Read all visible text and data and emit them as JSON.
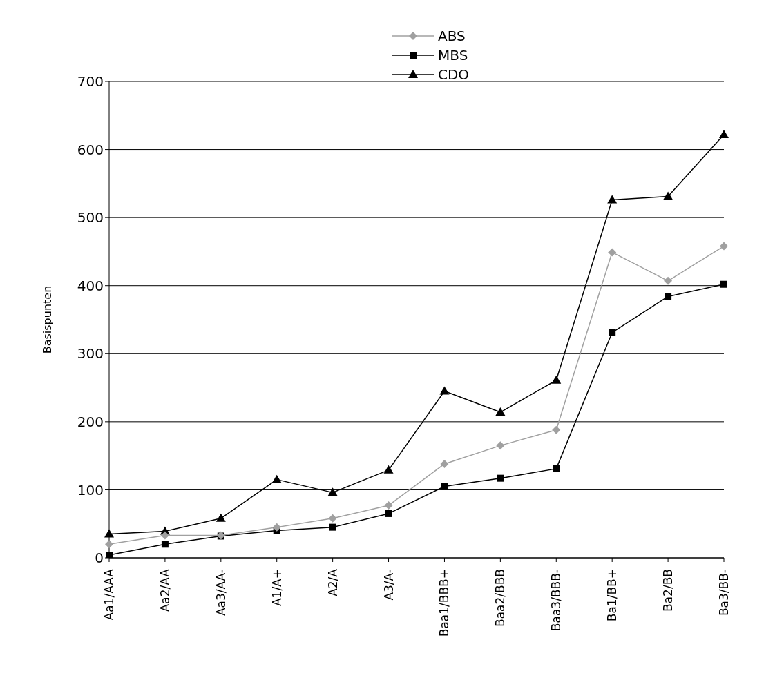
{
  "chart_data": {
    "type": "line",
    "ylabel": "Basispunten",
    "categories": [
      "Aa1/AAA",
      "Aa2/AA",
      "Aa3/AA-",
      "A1/A+",
      "A2/A",
      "A3/A-",
      "Baa1/BBB+",
      "Baa2/BBB",
      "Baa3/BBB-",
      "Ba1/BB+",
      "Ba2/BB",
      "Ba3/BB-"
    ],
    "series": [
      {
        "name": "ABS",
        "color": "#a0a0a0",
        "marker": "diamond",
        "values": [
          20,
          33,
          33,
          45,
          58,
          77,
          138,
          165,
          188,
          449,
          407,
          458
        ]
      },
      {
        "name": "MBS",
        "color": "#000000",
        "marker": "square",
        "values": [
          4,
          20,
          32,
          40,
          45,
          65,
          105,
          117,
          131,
          331,
          384,
          402
        ]
      },
      {
        "name": "CDO",
        "color": "#000000",
        "marker": "triangle",
        "values": [
          35,
          39,
          58,
          115,
          96,
          129,
          245,
          214,
          261,
          526,
          531,
          622
        ]
      }
    ],
    "ylim": [
      0,
      700
    ],
    "yticks": [
      0,
      100,
      200,
      300,
      400,
      500,
      600,
      700
    ],
    "grid": "y",
    "legend": "top",
    "line_style": "solid"
  }
}
